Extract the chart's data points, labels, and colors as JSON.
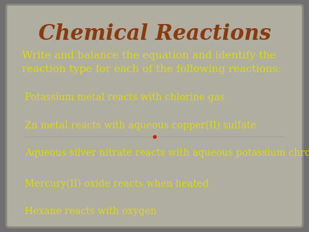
{
  "title": "Chemical Reactions",
  "title_color": "#8B3A10",
  "title_fontsize": 22,
  "title_family": "serif",
  "subtitle": "Write and balance the equation and identify the\nreaction type for each of the following reactions:",
  "subtitle_color": "#DDDD00",
  "subtitle_fontsize": 11,
  "items": [
    "Potassium metal reacts with chlorine gas",
    "Zn metal reacts with aqueous copper(II) sulfate",
    "Aqueous silver nitrate reacts with aqueous potassium chromate",
    "Mercury(II) oxide reacts when heated",
    "Hexane reacts with oxygen"
  ],
  "item_color": "#DDDD00",
  "item_fontsize": 10,
  "bg_color": "#B0AEA0",
  "outer_bg": "#707070",
  "divider_after_item": 1,
  "divider_color": "#999999",
  "divider_dot_color": "#CC2200",
  "font_family": "serif"
}
